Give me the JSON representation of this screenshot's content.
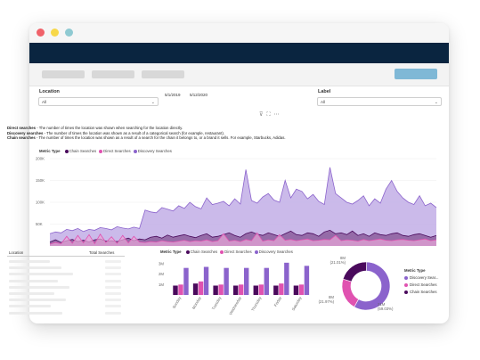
{
  "filters": {
    "location": {
      "label": "Location",
      "value": "All"
    },
    "label": {
      "label": "Label",
      "value": "All"
    },
    "date_start": "5/1/2019",
    "date_end": "5/12/2020"
  },
  "descriptions": [
    {
      "term": "Direct searches",
      "text": " - The number of times the location was shown when searching for the location directly."
    },
    {
      "term": "Discovery searches",
      "text": " - The number of times the location was shown as a result of a categorical search (for example, restaurant)."
    },
    {
      "term": "Chain searches",
      "text": " - The number of times the location was shown as a result of a search for the chain it belongs to, or a brand it sells. For example, Starbucks, Adidas."
    }
  ],
  "legend_title": "Metric Type",
  "legend_title_small": "Metric Type",
  "colors": {
    "chain": "#4a0a5c",
    "direct": "#e052b0",
    "discovery": "#8b63cc",
    "discovery_fill": "#c2aee6",
    "direct_fill": "#eaa6d8",
    "chain_fill": "#7d4a8c"
  },
  "table": {
    "col_location": "Location",
    "col_total": "Total Searches"
  },
  "donut_legend": {
    "title": "Metric Type",
    "items": [
      "Discovery Sear...",
      "Direct Searches",
      "Chain Searches"
    ]
  },
  "chart_data": [
    {
      "type": "area",
      "series": [
        {
          "name": "Chain Searches",
          "color": "#4a0a5c",
          "values": [
            9,
            14,
            8,
            12,
            15,
            10,
            13,
            9,
            14,
            16,
            11,
            12,
            10,
            14,
            18,
            12,
            16,
            14,
            20,
            22,
            18,
            25,
            20,
            23,
            26,
            22,
            19,
            24,
            28,
            20,
            22,
            26,
            30,
            24,
            20,
            28,
            32,
            27,
            24,
            30,
            26,
            22,
            28,
            34,
            26,
            24,
            30,
            28,
            22,
            32,
            36,
            28,
            30,
            26,
            34,
            24,
            28,
            22,
            30,
            26,
            24,
            28,
            30,
            24,
            22,
            26,
            28,
            24,
            20,
            24
          ]
        },
        {
          "name": "Direct Searches",
          "color": "#e052b0",
          "values": [
            4,
            8,
            5,
            22,
            6,
            24,
            7,
            26,
            5,
            27,
            8,
            21,
            6,
            24,
            7,
            22,
            9,
            8,
            10,
            9,
            12,
            10,
            9,
            11,
            13,
            10,
            12,
            11,
            14,
            10,
            12,
            28,
            11,
            13,
            10,
            15,
            12,
            30,
            11,
            14,
            12,
            26,
            13,
            15,
            12,
            14,
            16,
            12,
            13,
            15,
            14,
            24,
            12,
            14,
            13,
            11,
            15,
            12,
            14,
            16,
            13,
            12,
            14,
            15,
            13,
            12,
            14,
            16,
            12,
            14
          ]
        },
        {
          "name": "Discovery Searches",
          "color": "#8b63cc",
          "values": [
            28,
            32,
            30,
            38,
            35,
            40,
            33,
            38,
            36,
            42,
            40,
            37,
            44,
            41,
            39,
            43,
            40,
            82,
            78,
            76,
            88,
            84,
            80,
            92,
            86,
            100,
            90,
            85,
            110,
            95,
            98,
            102,
            92,
            108,
            96,
            175,
            104,
            98,
            112,
            120,
            105,
            100,
            150,
            110,
            130,
            125,
            108,
            118,
            102,
            95,
            180,
            120,
            110,
            100,
            96,
            104,
            115,
            92,
            108,
            98,
            130,
            150,
            125,
            110,
            100,
            95,
            115,
            92,
            98,
            88
          ]
        }
      ],
      "ylim": [
        0,
        200000
      ],
      "yticks": [
        "200K",
        "150K",
        "100K",
        "50K"
      ]
    },
    {
      "type": "bar",
      "categories": [
        "Sunday",
        "Monday",
        "Tuesday",
        "Wednesday",
        "Thursday",
        "Friday",
        "Saturday"
      ],
      "series": [
        {
          "name": "Chain Searches",
          "color": "#4a0a5c",
          "values": [
            0.9,
            1.1,
            0.9,
            0.9,
            0.9,
            0.9,
            0.9
          ]
        },
        {
          "name": "Direct Searches",
          "color": "#e052b0",
          "values": [
            1.0,
            1.3,
            1.0,
            1.0,
            1.0,
            1.1,
            1.0
          ]
        },
        {
          "name": "Discovery Searches",
          "color": "#8b63cc",
          "values": [
            2.6,
            2.7,
            2.6,
            2.6,
            2.6,
            3.1,
            2.8
          ]
        }
      ],
      "ylim": [
        0,
        3.6
      ],
      "yticks": [
        "3M",
        "2M",
        "1M"
      ]
    },
    {
      "type": "pie",
      "series": [
        {
          "name": "Discovery Searches",
          "color": "#8b63cc",
          "value": 0.5903,
          "label": "21M",
          "pct": "(59.03%)"
        },
        {
          "name": "Direct Searches",
          "color": "#e052b0",
          "value": 0.2197,
          "label": "8M",
          "pct": "(21.97%)"
        },
        {
          "name": "Chain Searches",
          "color": "#4a0a5c",
          "value": 0.2101,
          "label": "8M",
          "pct": "(21.01%)"
        }
      ]
    }
  ]
}
